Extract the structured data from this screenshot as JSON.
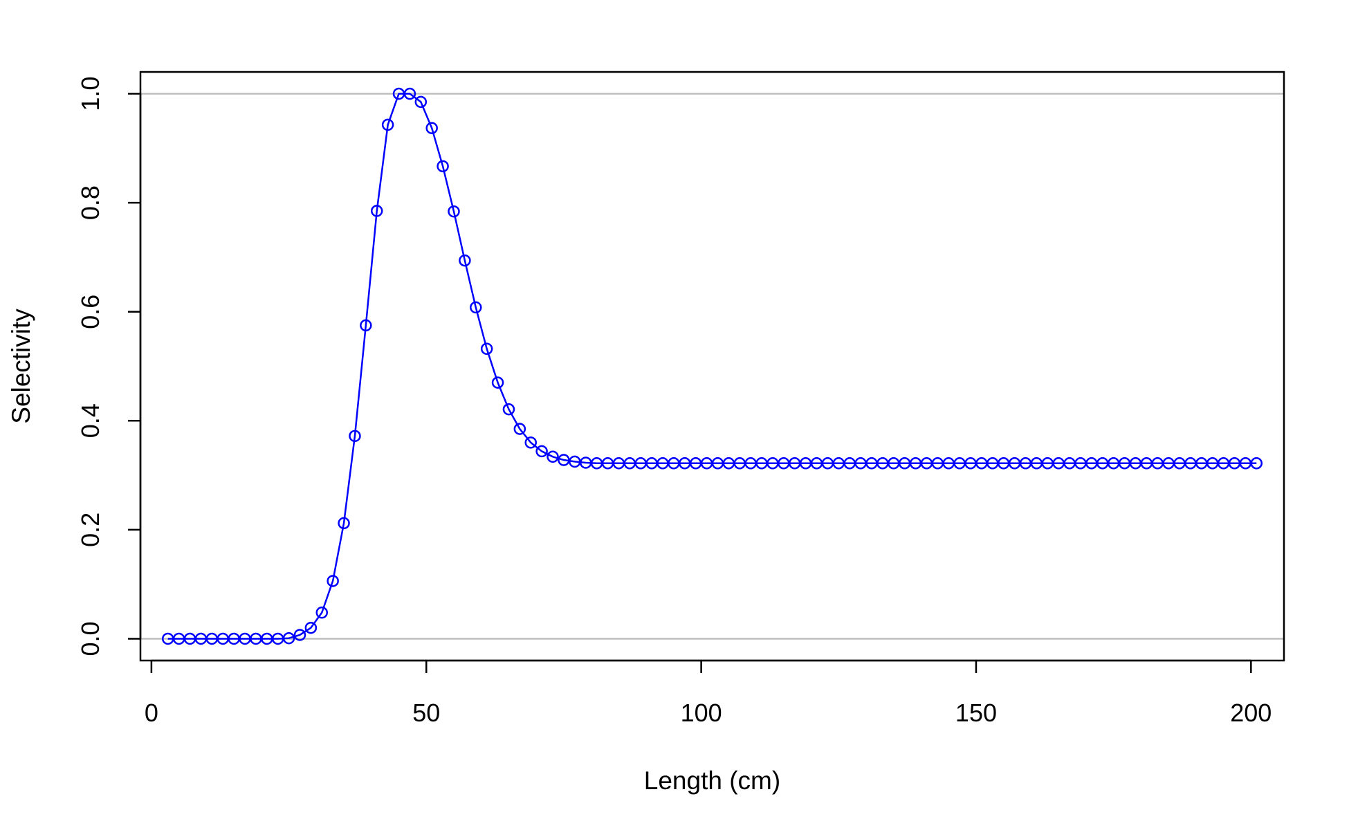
{
  "chart_data": {
    "type": "line",
    "title": "",
    "xlabel": "Length (cm)",
    "ylabel": "Selectivity",
    "xlim": [
      -2,
      206
    ],
    "ylim": [
      -0.04,
      1.04
    ],
    "xticks": [
      0,
      50,
      100,
      150,
      200
    ],
    "xtick_labels": [
      "0",
      "50",
      "100",
      "150",
      "200"
    ],
    "yticks": [
      0.0,
      0.2,
      0.4,
      0.6,
      0.8,
      1.0
    ],
    "ytick_labels": [
      "0.0",
      "0.2",
      "0.4",
      "0.6",
      "0.8",
      "1.0"
    ],
    "reference_lines_y": [
      0.0,
      1.0
    ],
    "markers": "open-circle",
    "grid": false,
    "legend": "none",
    "colors": {
      "series": "#0000ff",
      "reference_line": "#bebebe",
      "axes": "#000000"
    },
    "series": [
      {
        "x": [
          3,
          5,
          7,
          9,
          11,
          13,
          15,
          17,
          19,
          21,
          23,
          25,
          27,
          29,
          31,
          33,
          35,
          37,
          39,
          41,
          43,
          45,
          47,
          49,
          51,
          53,
          55,
          57,
          59,
          61,
          63,
          65,
          67,
          69,
          71,
          73,
          75,
          77,
          79,
          81,
          83,
          85,
          87,
          89,
          91,
          93,
          95,
          97,
          99,
          101,
          103,
          105,
          107,
          109,
          111,
          113,
          115,
          117,
          119,
          121,
          123,
          125,
          127,
          129,
          131,
          133,
          135,
          137,
          139,
          141,
          143,
          145,
          147,
          149,
          151,
          153,
          155,
          157,
          159,
          161,
          163,
          165,
          167,
          169,
          171,
          173,
          175,
          177,
          179,
          181,
          183,
          185,
          187,
          189,
          191,
          193,
          195,
          197,
          199,
          201
        ],
        "y": [
          0.0,
          0.0,
          0.0,
          0.0,
          0.0,
          0.0,
          0.0,
          0.0,
          0.0,
          0.0,
          0.0,
          0.001,
          0.007,
          0.02,
          0.048,
          0.106,
          0.212,
          0.372,
          0.575,
          0.785,
          0.943,
          1.0,
          1.0,
          0.985,
          0.937,
          0.867,
          0.784,
          0.694,
          0.608,
          0.532,
          0.47,
          0.421,
          0.385,
          0.36,
          0.344,
          0.334,
          0.328,
          0.325,
          0.323,
          0.322,
          0.322,
          0.322,
          0.322,
          0.322,
          0.322,
          0.322,
          0.322,
          0.322,
          0.322,
          0.322,
          0.322,
          0.322,
          0.322,
          0.322,
          0.322,
          0.322,
          0.322,
          0.322,
          0.322,
          0.322,
          0.322,
          0.322,
          0.322,
          0.322,
          0.322,
          0.322,
          0.322,
          0.322,
          0.322,
          0.322,
          0.322,
          0.322,
          0.322,
          0.322,
          0.322,
          0.322,
          0.322,
          0.322,
          0.322,
          0.322,
          0.322,
          0.322,
          0.322,
          0.322,
          0.322,
          0.322,
          0.322,
          0.322,
          0.322,
          0.322,
          0.322,
          0.322,
          0.322,
          0.322,
          0.322,
          0.322,
          0.322,
          0.322,
          0.322,
          0.322
        ]
      }
    ]
  }
}
